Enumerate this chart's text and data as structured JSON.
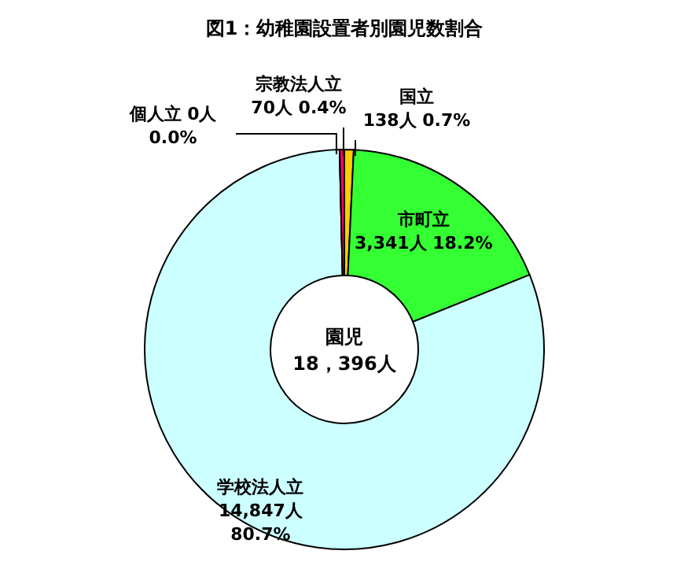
{
  "chart_data": {
    "type": "donut",
    "title": "図1：幼稚園設置者別園児数割合",
    "categories": [
      "国立",
      "市町立",
      "学校法人立",
      "個人立",
      "宗教法人立"
    ],
    "values": [
      138,
      3341,
      14847,
      0,
      70
    ],
    "colors": [
      "#ffcc00",
      "#33ff33",
      "#ccffff",
      "#000000",
      "#ff0066"
    ],
    "value_labels": [
      "138人 0.7%",
      "3,341人 18.2%",
      "14,847人 80.7%",
      "0人 0.0%",
      "70人 0.4%"
    ],
    "annotations": [
      "園児",
      "18，396人"
    ],
    "legend": false
  }
}
